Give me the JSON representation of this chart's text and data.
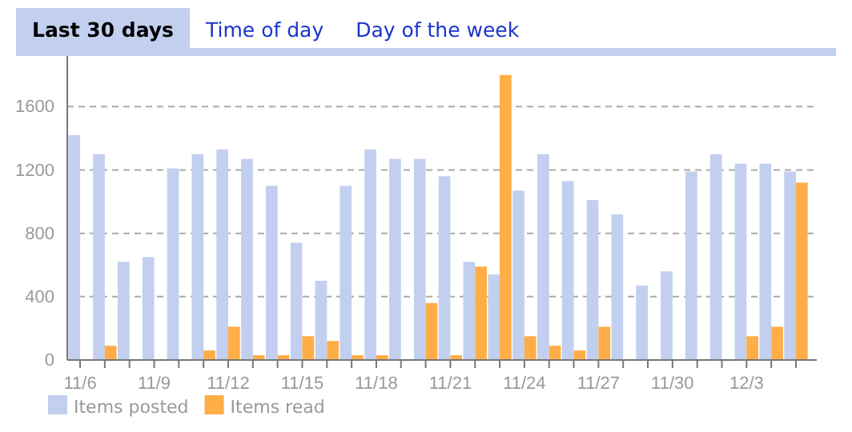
{
  "chart_data": {
    "type": "bar",
    "annotations": [
      "Last 30 days",
      "Time of day",
      "Day of the week"
    ],
    "categories": [
      "11/6",
      null,
      null,
      "11/9",
      null,
      null,
      "11/12",
      null,
      null,
      "11/15",
      null,
      null,
      "11/18",
      null,
      null,
      "11/21",
      null,
      null,
      "11/24",
      null,
      null,
      "11/27",
      null,
      null,
      "11/30",
      null,
      null,
      "12/3",
      null,
      null
    ],
    "series": [
      {
        "name": "Items posted",
        "color": "#c3cfee",
        "values": [
          1420,
          1300,
          620,
          650,
          1210,
          1300,
          1330,
          1270,
          1100,
          740,
          500,
          1100,
          1330,
          1270,
          1270,
          1160,
          620,
          540,
          1070,
          1300,
          1130,
          1010,
          920,
          470,
          560,
          1190,
          1300,
          1240,
          1240,
          1190
        ]
      },
      {
        "name": "Items read",
        "color": "#ffad46",
        "values": [
          0,
          90,
          0,
          0,
          0,
          60,
          210,
          30,
          30,
          150,
          120,
          30,
          30,
          0,
          360,
          30,
          590,
          1800,
          150,
          90,
          60,
          210,
          0,
          0,
          0,
          0,
          0,
          150,
          210,
          1120
        ]
      }
    ],
    "ylim": [
      0,
      1920
    ],
    "yticks": [
      0,
      400,
      800,
      1200,
      1600
    ],
    "grid": "y",
    "legend": "bottom left"
  }
}
